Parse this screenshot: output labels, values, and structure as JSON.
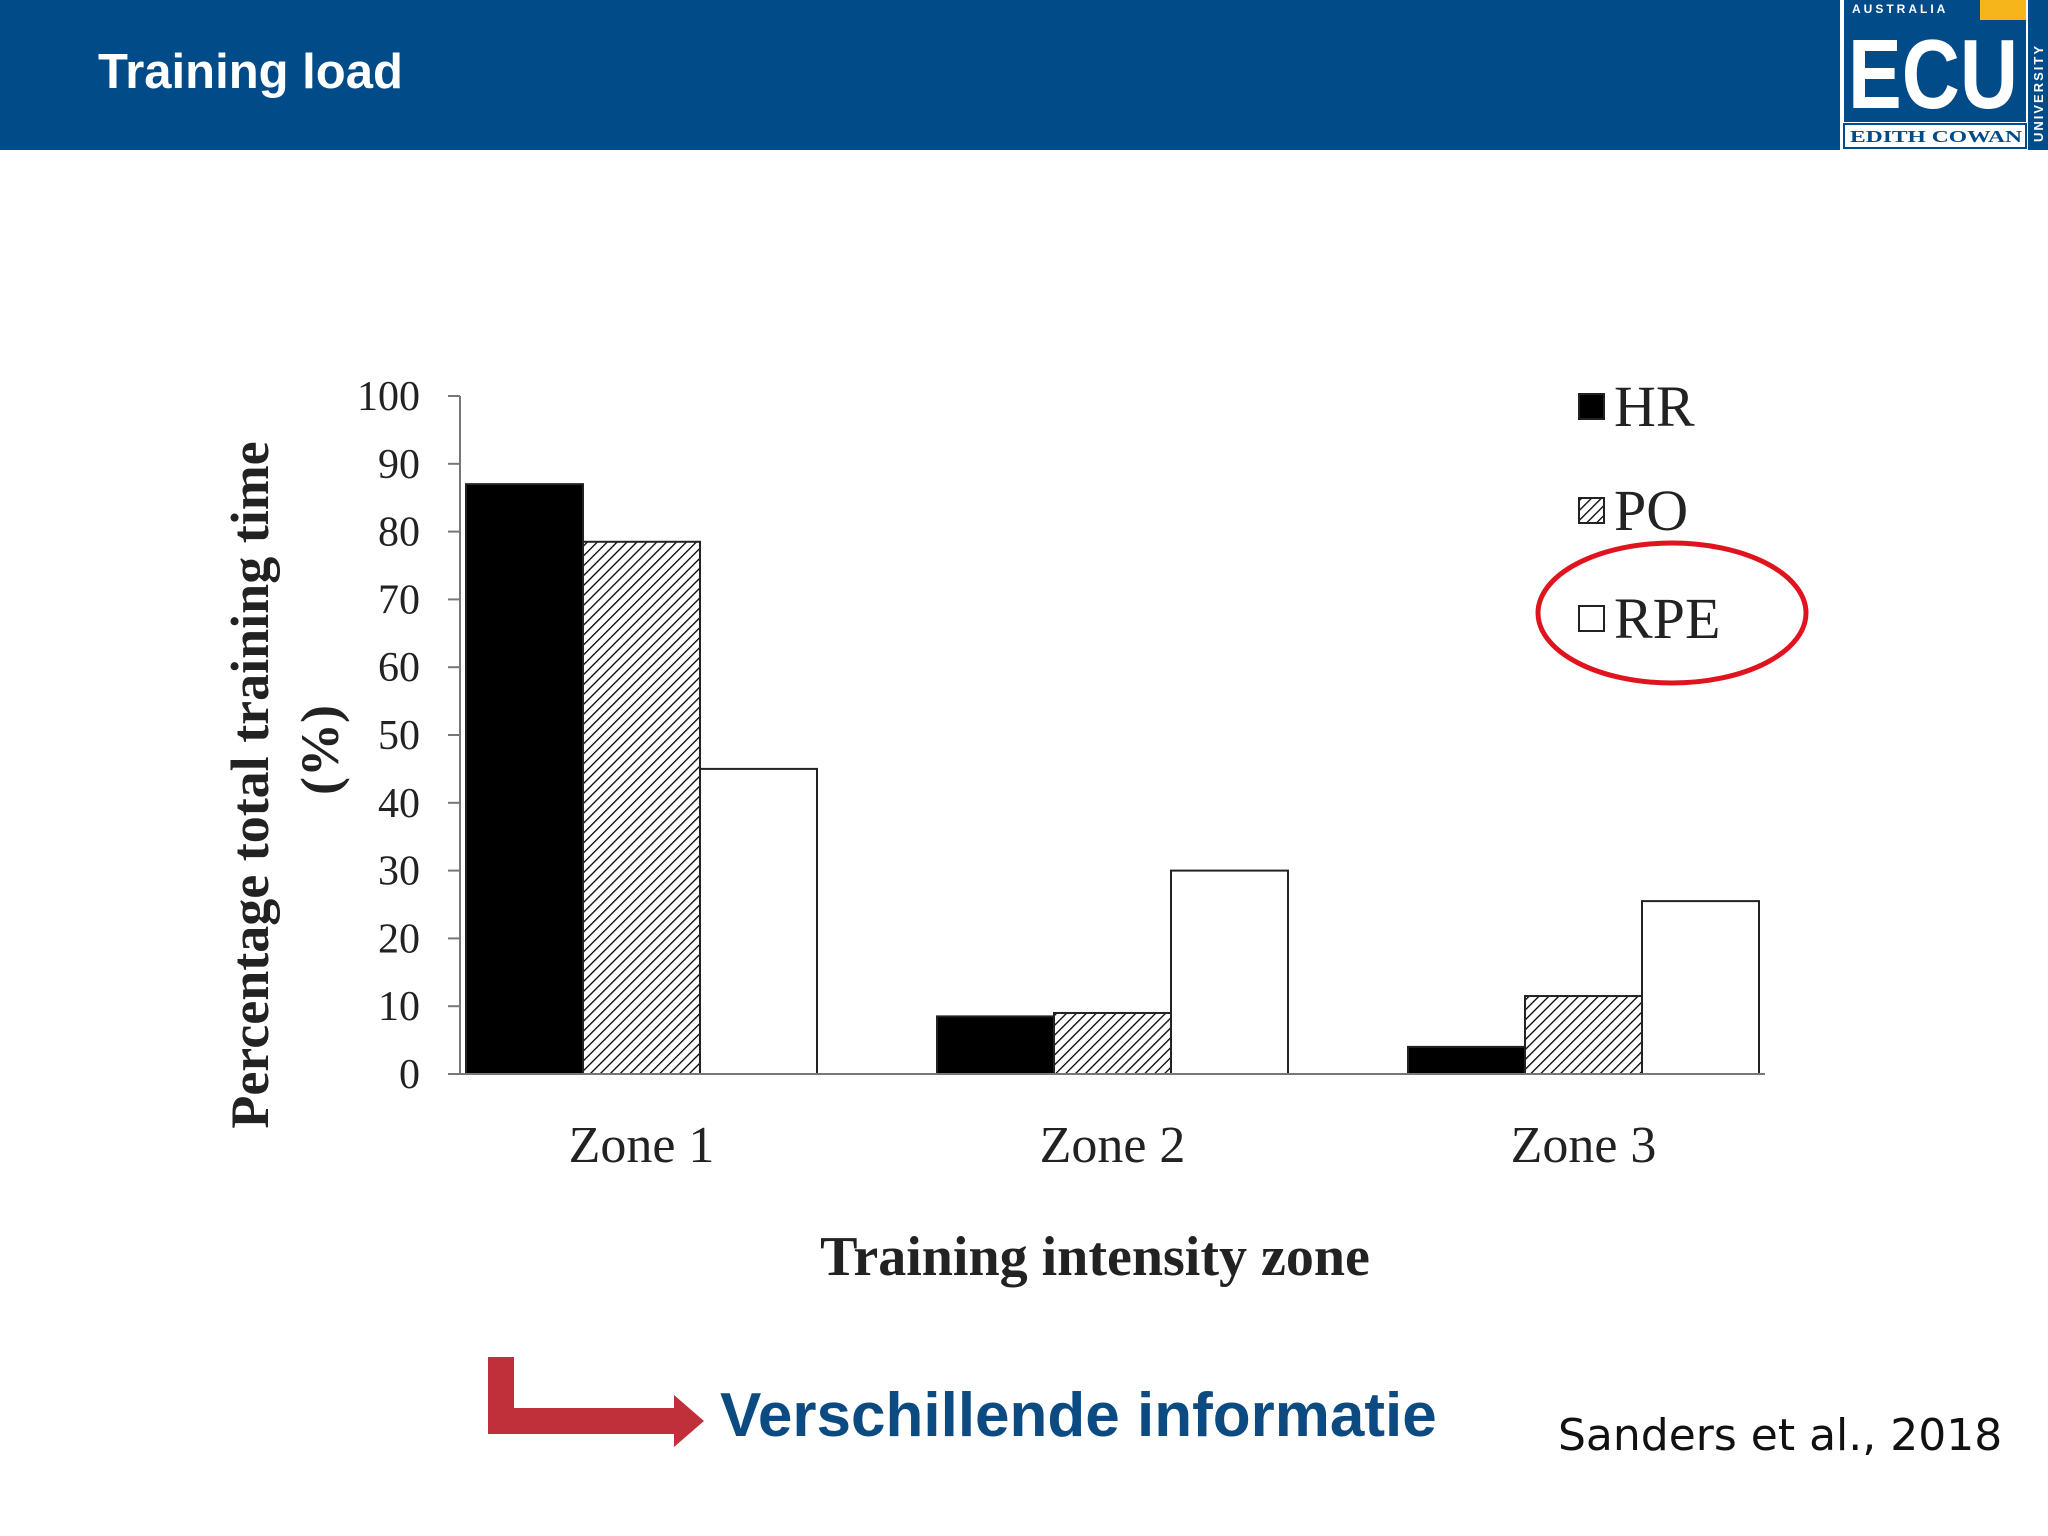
{
  "header": {
    "title": "Training load",
    "logo": {
      "top_text": "AUSTRALIA",
      "main_text": "ECU",
      "bottom_text": "EDITH COWAN",
      "side_text": "UNIVERSITY"
    }
  },
  "chart_data": {
    "type": "bar",
    "categories": [
      "Zone 1",
      "Zone 2",
      "Zone 3"
    ],
    "series": [
      {
        "name": "HR",
        "values": [
          87,
          8.5,
          4
        ],
        "fill": "solid-black"
      },
      {
        "name": "PO",
        "values": [
          78.5,
          9,
          11.5
        ],
        "fill": "hatched"
      },
      {
        "name": "RPE",
        "values": [
          45,
          30,
          25.5
        ],
        "fill": "white"
      }
    ],
    "title": "",
    "xlabel": "Training intensity zone",
    "ylabel_line1": "Percentage total training time",
    "ylabel_line2": "(%)",
    "ylim": [
      0,
      100
    ],
    "yticks": [
      "0",
      "10",
      "20",
      "30",
      "40",
      "50",
      "60",
      "70",
      "80",
      "90",
      "100"
    ],
    "legend_position": "top-right",
    "highlighted_legend_entry": "RPE",
    "highlight_color": "#e0141e"
  },
  "footer": {
    "arrow_color": "#c0303a",
    "text": "Verschillende informatie",
    "citation": "Sanders et al., 2018"
  },
  "colors": {
    "header_bg": "#004b88",
    "logo_gold": "#f6b51a"
  }
}
